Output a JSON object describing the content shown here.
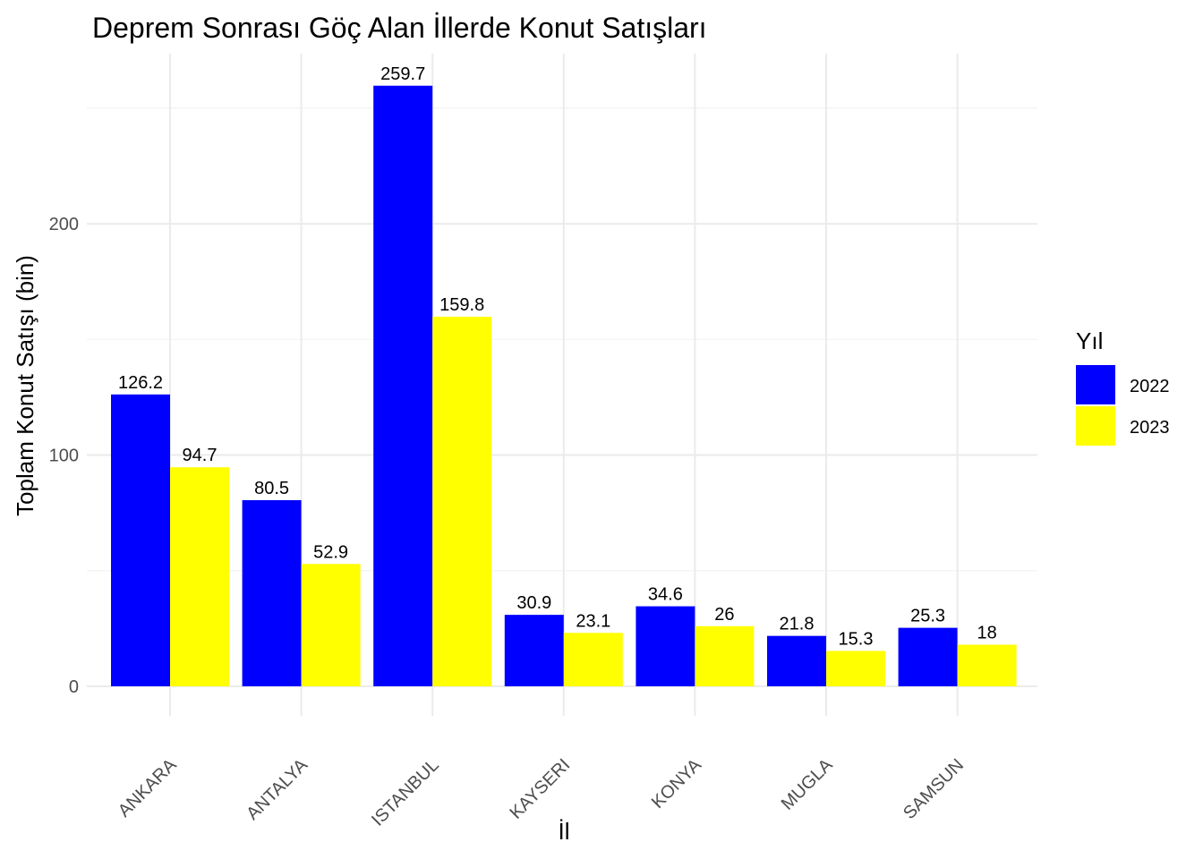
{
  "chart_data": {
    "type": "bar",
    "title": "Deprem Sonrası Göç Alan İllerde Konut Satışları",
    "xlabel": "İl",
    "ylabel": "Toplam Konut Satışı (bin)",
    "categories": [
      "ANKARA",
      "ANTALYA",
      "ISTANBUL",
      "KAYSERI",
      "KONYA",
      "MUGLA",
      "SAMSUN"
    ],
    "series": [
      {
        "name": "2022",
        "color": "#0000FF",
        "values": [
          126.2,
          80.5,
          259.7,
          30.9,
          34.6,
          21.8,
          25.3
        ]
      },
      {
        "name": "2023",
        "color": "#FFFF00",
        "values": [
          94.7,
          52.9,
          159.8,
          23.1,
          26,
          15.3,
          18
        ]
      }
    ],
    "ylim": [
      -10,
      273.2
    ],
    "yticks": [
      0,
      100,
      200
    ],
    "grid": true,
    "legend": {
      "title": "Yıl",
      "position": "right"
    }
  }
}
